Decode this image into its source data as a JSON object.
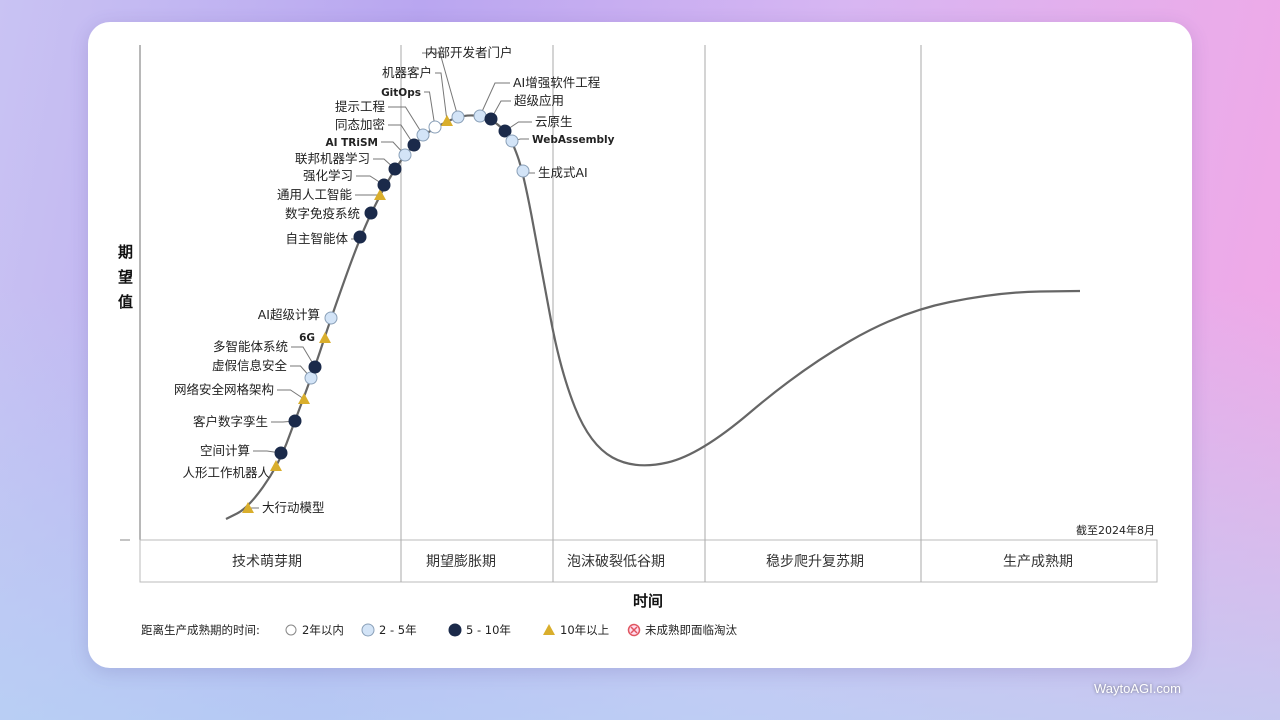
{
  "chart_data": {
    "type": "hype-cycle",
    "ylabel": "期望值",
    "xlabel": "时间",
    "as_of": "截至2024年8月",
    "phases": [
      "技术萌芽期",
      "期望膨胀期",
      "泡沫破裂低谷期",
      "稳步爬升复苏期",
      "生产成熟期"
    ],
    "legend": {
      "title": "距离生产成熟期的时间:",
      "items": [
        {
          "key": "lt2",
          "label": "2年以内",
          "color": "#ffffff"
        },
        {
          "key": "2to5",
          "label": "2 - 5年",
          "color": "#d3e4f7"
        },
        {
          "key": "5to10",
          "label": "5 - 10年",
          "color": "#1b2a4a"
        },
        {
          "key": "gt10",
          "label": "10年以上",
          "color": "#d9ae2c"
        },
        {
          "key": "obsolete",
          "label": "未成熟即面临淘汰",
          "color": "#e05560"
        }
      ]
    },
    "technologies": [
      {
        "name": "大行动模型",
        "maturity": "gt10",
        "phase": "技术萌芽期"
      },
      {
        "name": "人形工作机器人",
        "maturity": "gt10",
        "phase": "技术萌芽期"
      },
      {
        "name": "空间计算",
        "maturity": "5to10",
        "phase": "技术萌芽期"
      },
      {
        "name": "客户数字孪生",
        "maturity": "5to10",
        "phase": "技术萌芽期"
      },
      {
        "name": "网络安全网格架构",
        "maturity": "gt10",
        "phase": "技术萌芽期"
      },
      {
        "name": "虚假信息安全",
        "maturity": "2to5",
        "phase": "技术萌芽期"
      },
      {
        "name": "多智能体系统",
        "maturity": "5to10",
        "phase": "技术萌芽期"
      },
      {
        "name": "6G",
        "maturity": "gt10",
        "phase": "技术萌芽期"
      },
      {
        "name": "AI超级计算",
        "maturity": "2to5",
        "phase": "技术萌芽期"
      },
      {
        "name": "自主智能体",
        "maturity": "5to10",
        "phase": "技术萌芽期"
      },
      {
        "name": "数字免疫系统",
        "maturity": "5to10",
        "phase": "技术萌芽期"
      },
      {
        "name": "通用人工智能",
        "maturity": "gt10",
        "phase": "技术萌芽期"
      },
      {
        "name": "强化学习",
        "maturity": "5to10",
        "phase": "技术萌芽期"
      },
      {
        "name": "联邦机器学习",
        "maturity": "5to10",
        "phase": "期望膨胀期"
      },
      {
        "name": "AI TRiSM",
        "maturity": "2to5",
        "phase": "期望膨胀期"
      },
      {
        "name": "同态加密",
        "maturity": "5to10",
        "phase": "期望膨胀期"
      },
      {
        "name": "提示工程",
        "maturity": "2to5",
        "phase": "期望膨胀期"
      },
      {
        "name": "GitOps",
        "maturity": "lt2",
        "phase": "期望膨胀期"
      },
      {
        "name": "机器客户",
        "maturity": "gt10",
        "phase": "期望膨胀期"
      },
      {
        "name": "内部开发者门户",
        "maturity": "2to5",
        "phase": "期望膨胀期"
      },
      {
        "name": "AI增强软件工程",
        "maturity": "2to5",
        "phase": "期望膨胀期"
      },
      {
        "name": "超级应用",
        "maturity": "5to10",
        "phase": "期望膨胀期"
      },
      {
        "name": "云原生",
        "maturity": "5to10",
        "phase": "期望膨胀期"
      },
      {
        "name": "WebAssembly",
        "maturity": "2to5",
        "phase": "期望膨胀期"
      },
      {
        "name": "生成式AI",
        "maturity": "2to5",
        "phase": "期望膨胀期"
      }
    ]
  },
  "watermark": "WaytoAGI.com"
}
